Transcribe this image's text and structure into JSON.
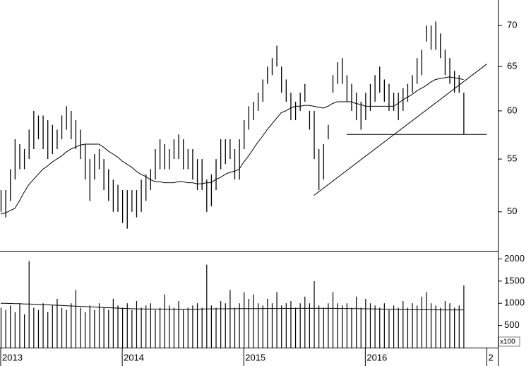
{
  "chart_data": [
    {
      "type": "ohlc",
      "log_scale": true,
      "color": "#000000",
      "categories": [
        "2013",
        null,
        null,
        null,
        null,
        null,
        null,
        null,
        null,
        null,
        null,
        null,
        null,
        null,
        null,
        null,
        null,
        null,
        null,
        null,
        null,
        null,
        null,
        null,
        null,
        null,
        "2014",
        null,
        null,
        null,
        null,
        null,
        null,
        null,
        null,
        null,
        null,
        null,
        null,
        null,
        null,
        null,
        null,
        null,
        null,
        null,
        null,
        null,
        null,
        null,
        null,
        null,
        "2015",
        null,
        null,
        null,
        null,
        null,
        null,
        null,
        null,
        null,
        null,
        null,
        null,
        null,
        null,
        null,
        null,
        null,
        null,
        null,
        null,
        null,
        null,
        null,
        null,
        null,
        "2016",
        null,
        null,
        null,
        null,
        null,
        null,
        null,
        null,
        null,
        null,
        null,
        null,
        null,
        null,
        null,
        null,
        null,
        null,
        null,
        null,
        null,
        null,
        null,
        null,
        null,
        "2"
      ],
      "high": [
        52,
        52,
        54,
        57,
        56.5,
        56,
        58,
        60,
        59.5,
        59.5,
        59,
        58.5,
        58,
        59.5,
        60.5,
        60,
        59,
        58,
        56.5,
        55,
        55.5,
        56,
        55,
        54,
        53,
        52.5,
        52,
        52,
        52,
        52,
        53,
        53.5,
        54,
        56,
        57,
        56.5,
        56,
        57,
        57.5,
        57,
        56,
        56,
        55,
        55,
        53,
        53.5,
        55,
        57,
        57,
        57,
        56,
        57,
        59,
        60.5,
        61,
        62,
        63.5,
        65,
        66,
        67.5,
        65,
        63.5,
        62,
        61,
        62,
        63,
        60,
        60,
        56,
        56.5,
        58.5,
        64,
        65.5,
        66,
        64,
        63,
        62,
        61,
        62,
        63,
        64,
        65,
        63.5,
        63,
        62,
        62,
        62.5,
        63,
        64,
        66,
        67,
        70,
        70,
        70.5,
        69,
        67,
        66,
        64.5,
        64,
        62,
        null,
        null,
        null,
        null,
        null
      ],
      "low": [
        50,
        49.5,
        51,
        53,
        54,
        54,
        55,
        56,
        57,
        56,
        55,
        55.5,
        56,
        57,
        58,
        57,
        56,
        55,
        53,
        51,
        53,
        54,
        52,
        51,
        50,
        50,
        49,
        48.5,
        50,
        49.5,
        50,
        51,
        52,
        53,
        54,
        54,
        54,
        55,
        55,
        54,
        54,
        53,
        52,
        52,
        50,
        50.5,
        52,
        54,
        54.5,
        55,
        53,
        53,
        56,
        58,
        59,
        60,
        61,
        63,
        64,
        65,
        62,
        61,
        59,
        59,
        60,
        61,
        58,
        55,
        52,
        53,
        57,
        62,
        63,
        63,
        61,
        60,
        59,
        58,
        59,
        60,
        61,
        62,
        61,
        60,
        60,
        59,
        60,
        61,
        62,
        63,
        64,
        68,
        67,
        67,
        66,
        64,
        63,
        62,
        62,
        57.5,
        null,
        null,
        null,
        null,
        null
      ],
      "moving_average": [
        49.8,
        49.9,
        50.1,
        50.3,
        51.0,
        51.8,
        52.5,
        53.0,
        53.5,
        54.0,
        54.3,
        54.7,
        55.0,
        55.3,
        55.7,
        56.0,
        56.2,
        56.4,
        56.5,
        56.5,
        56.5,
        56.5,
        56.2,
        55.8,
        55.5,
        55.2,
        54.8,
        54.5,
        54.2,
        53.8,
        53.5,
        53.3,
        53.0,
        52.8,
        52.8,
        52.7,
        52.7,
        52.7,
        52.8,
        52.8,
        52.7,
        52.7,
        52.6,
        52.6,
        52.7,
        52.7,
        53.0,
        53.2,
        53.5,
        53.7,
        53.8,
        54.0,
        54.7,
        55.3,
        56.0,
        56.7,
        57.3,
        58.0,
        58.6,
        59.2,
        59.8,
        60.0,
        60.3,
        60.5,
        60.5,
        60.6,
        60.6,
        60.5,
        60.4,
        60.3,
        60.5,
        60.8,
        61.0,
        61.0,
        61.0,
        61.0,
        60.8,
        60.7,
        60.5,
        60.5,
        60.5,
        60.5,
        60.5,
        60.5,
        60.5,
        60.8,
        61.2,
        61.5,
        61.8,
        62.2,
        62.5,
        62.8,
        63.2,
        63.5,
        63.6,
        63.7,
        63.8,
        63.7,
        63.6,
        63.5,
        null,
        null,
        null,
        null,
        null
      ],
      "trendlines": [
        {
          "x": [
            67,
            104
          ],
          "values": [
            51.5,
            65.3
          ]
        },
        {
          "x": [
            74,
            104
          ],
          "values": [
            57.5,
            57.5
          ]
        }
      ],
      "ylim": [
        46.6,
        73.3
      ],
      "yticks": [
        50,
        55,
        60,
        65,
        70
      ]
    },
    {
      "type": "bar",
      "color": "#000000",
      "unit_label": "x100",
      "values": [
        900,
        850,
        950,
        800,
        1000,
        750,
        1950,
        900,
        850,
        1000,
        800,
        950,
        1100,
        900,
        850,
        1000,
        1300,
        900,
        800,
        950,
        850,
        1000,
        900,
        850,
        1100,
        950,
        900,
        1000,
        850,
        1050,
        900,
        950,
        1000,
        850,
        900,
        1200,
        950,
        900,
        1050,
        850,
        900,
        950,
        1000,
        900,
        1870,
        950,
        900,
        1050,
        1000,
        1300,
        900,
        1000,
        1250,
        1100,
        1200,
        1000,
        950,
        1100,
        1000,
        1250,
        950,
        1000,
        1050,
        900,
        1000,
        1150,
        1000,
        1500,
        950,
        900,
        1000,
        1250,
        1000,
        950,
        1000,
        900,
        1150,
        900,
        1100,
        1000,
        950,
        900,
        1000,
        850,
        950,
        900,
        1050,
        900,
        1000,
        950,
        1150,
        1250,
        1000,
        950,
        900,
        1050,
        1000,
        900,
        950,
        1400,
        null,
        null,
        null,
        null,
        null
      ],
      "moving_average": [
        1000,
        1000,
        995,
        990,
        990,
        985,
        985,
        980,
        975,
        970,
        965,
        960,
        955,
        950,
        945,
        940,
        935,
        930,
        925,
        920,
        915,
        910,
        905,
        900,
        895,
        890,
        885,
        880,
        878,
        875,
        872,
        870,
        870,
        870,
        868,
        868,
        866,
        866,
        865,
        865,
        865,
        866,
        868,
        870,
        872,
        874,
        875,
        876,
        876,
        877,
        878,
        879,
        880,
        880,
        880,
        881,
        882,
        882,
        882,
        883,
        883,
        884,
        884,
        885,
        885,
        885,
        885,
        886,
        886,
        886,
        886,
        885,
        884,
        883,
        882,
        881,
        880,
        878,
        876,
        874,
        872,
        870,
        868,
        866,
        864,
        862,
        860,
        858,
        857,
        856,
        855,
        854,
        853,
        852,
        851,
        851,
        850,
        850,
        850,
        850,
        null,
        null,
        null,
        null,
        null
      ],
      "ylim": [
        0,
        2150
      ],
      "yticks": [
        500,
        1000,
        1500,
        2000
      ]
    }
  ]
}
